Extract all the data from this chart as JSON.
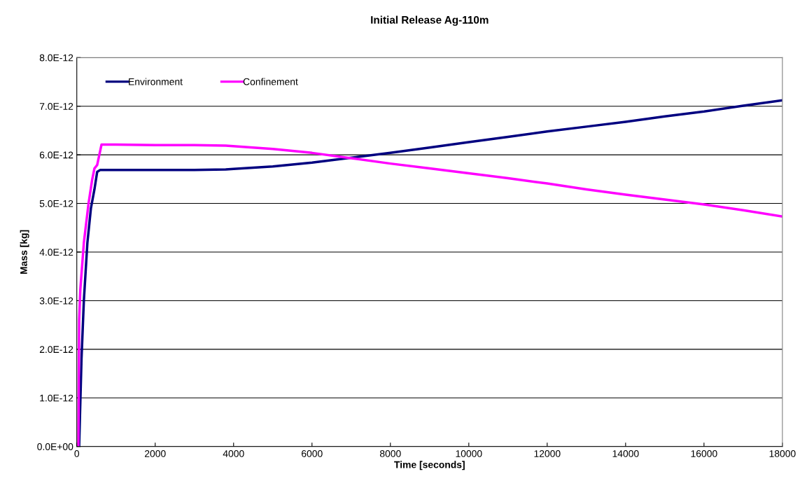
{
  "chart_data": {
    "type": "line",
    "title": "Initial Release Ag-110m",
    "xlabel": "Time [seconds]",
    "ylabel": "Mass [kg]",
    "xlim": [
      0,
      18000
    ],
    "xticks": [
      0,
      2000,
      4000,
      6000,
      8000,
      10000,
      12000,
      14000,
      16000,
      18000
    ],
    "ylim": [
      0,
      8e-12
    ],
    "yticks": [
      {
        "value": 0,
        "label": "0.0E+00"
      },
      {
        "value": 1e-12,
        "label": "1.0E-12"
      },
      {
        "value": 2e-12,
        "label": "2.0E-12"
      },
      {
        "value": 3e-12,
        "label": "3.0E-12"
      },
      {
        "value": 4e-12,
        "label": "4.0E-12"
      },
      {
        "value": 5e-12,
        "label": "5.0E-12"
      },
      {
        "value": 6e-12,
        "label": "6.0E-12"
      },
      {
        "value": 7e-12,
        "label": "7.0E-12"
      },
      {
        "value": 8e-12,
        "label": "8.0E-12"
      }
    ],
    "grid": "y",
    "legend": "top left",
    "marker": "none",
    "line_style": "solid",
    "series": [
      {
        "name": "Environment",
        "color": "#000080",
        "x": [
          60,
          120,
          180,
          270,
          360,
          450,
          520,
          600,
          1000,
          2000,
          3000,
          3800,
          4000,
          5000,
          6000,
          7000,
          8000,
          9000,
          10000,
          11000,
          12000,
          13000,
          14000,
          15000,
          16000,
          17000,
          18000
        ],
        "values": [
          0,
          1.8e-12,
          3e-12,
          4.19e-12,
          4.9e-12,
          5.29e-12,
          5.65e-12,
          5.69e-12,
          5.69e-12,
          5.69e-12,
          5.69e-12,
          5.7e-12,
          5.71e-12,
          5.76e-12,
          5.84e-12,
          5.94e-12,
          6.04e-12,
          6.15e-12,
          6.26e-12,
          6.37e-12,
          6.48e-12,
          6.58e-12,
          6.68e-12,
          6.79e-12,
          6.89e-12,
          7.01e-12,
          7.12e-12
        ]
      },
      {
        "name": "Confinement",
        "color": "#ff00ff",
        "x": [
          40,
          60,
          90,
          180,
          300,
          390,
          450,
          520,
          630,
          1000,
          2000,
          3000,
          3800,
          5000,
          6000,
          7000,
          8000,
          9000,
          10000,
          11000,
          12000,
          13000,
          14000,
          15000,
          16000,
          17000,
          18000
        ],
        "values": [
          0,
          2.6e-12,
          3.23e-12,
          4.19e-12,
          5e-12,
          5.48e-12,
          5.72e-12,
          5.79e-12,
          6.21e-12,
          6.21e-12,
          6.2e-12,
          6.2e-12,
          6.19e-12,
          6.12e-12,
          6.04e-12,
          5.93e-12,
          5.82e-12,
          5.72e-12,
          5.62e-12,
          5.52e-12,
          5.41e-12,
          5.29e-12,
          5.18e-12,
          5.08e-12,
          4.98e-12,
          4.86e-12,
          4.73e-12
        ]
      }
    ]
  }
}
